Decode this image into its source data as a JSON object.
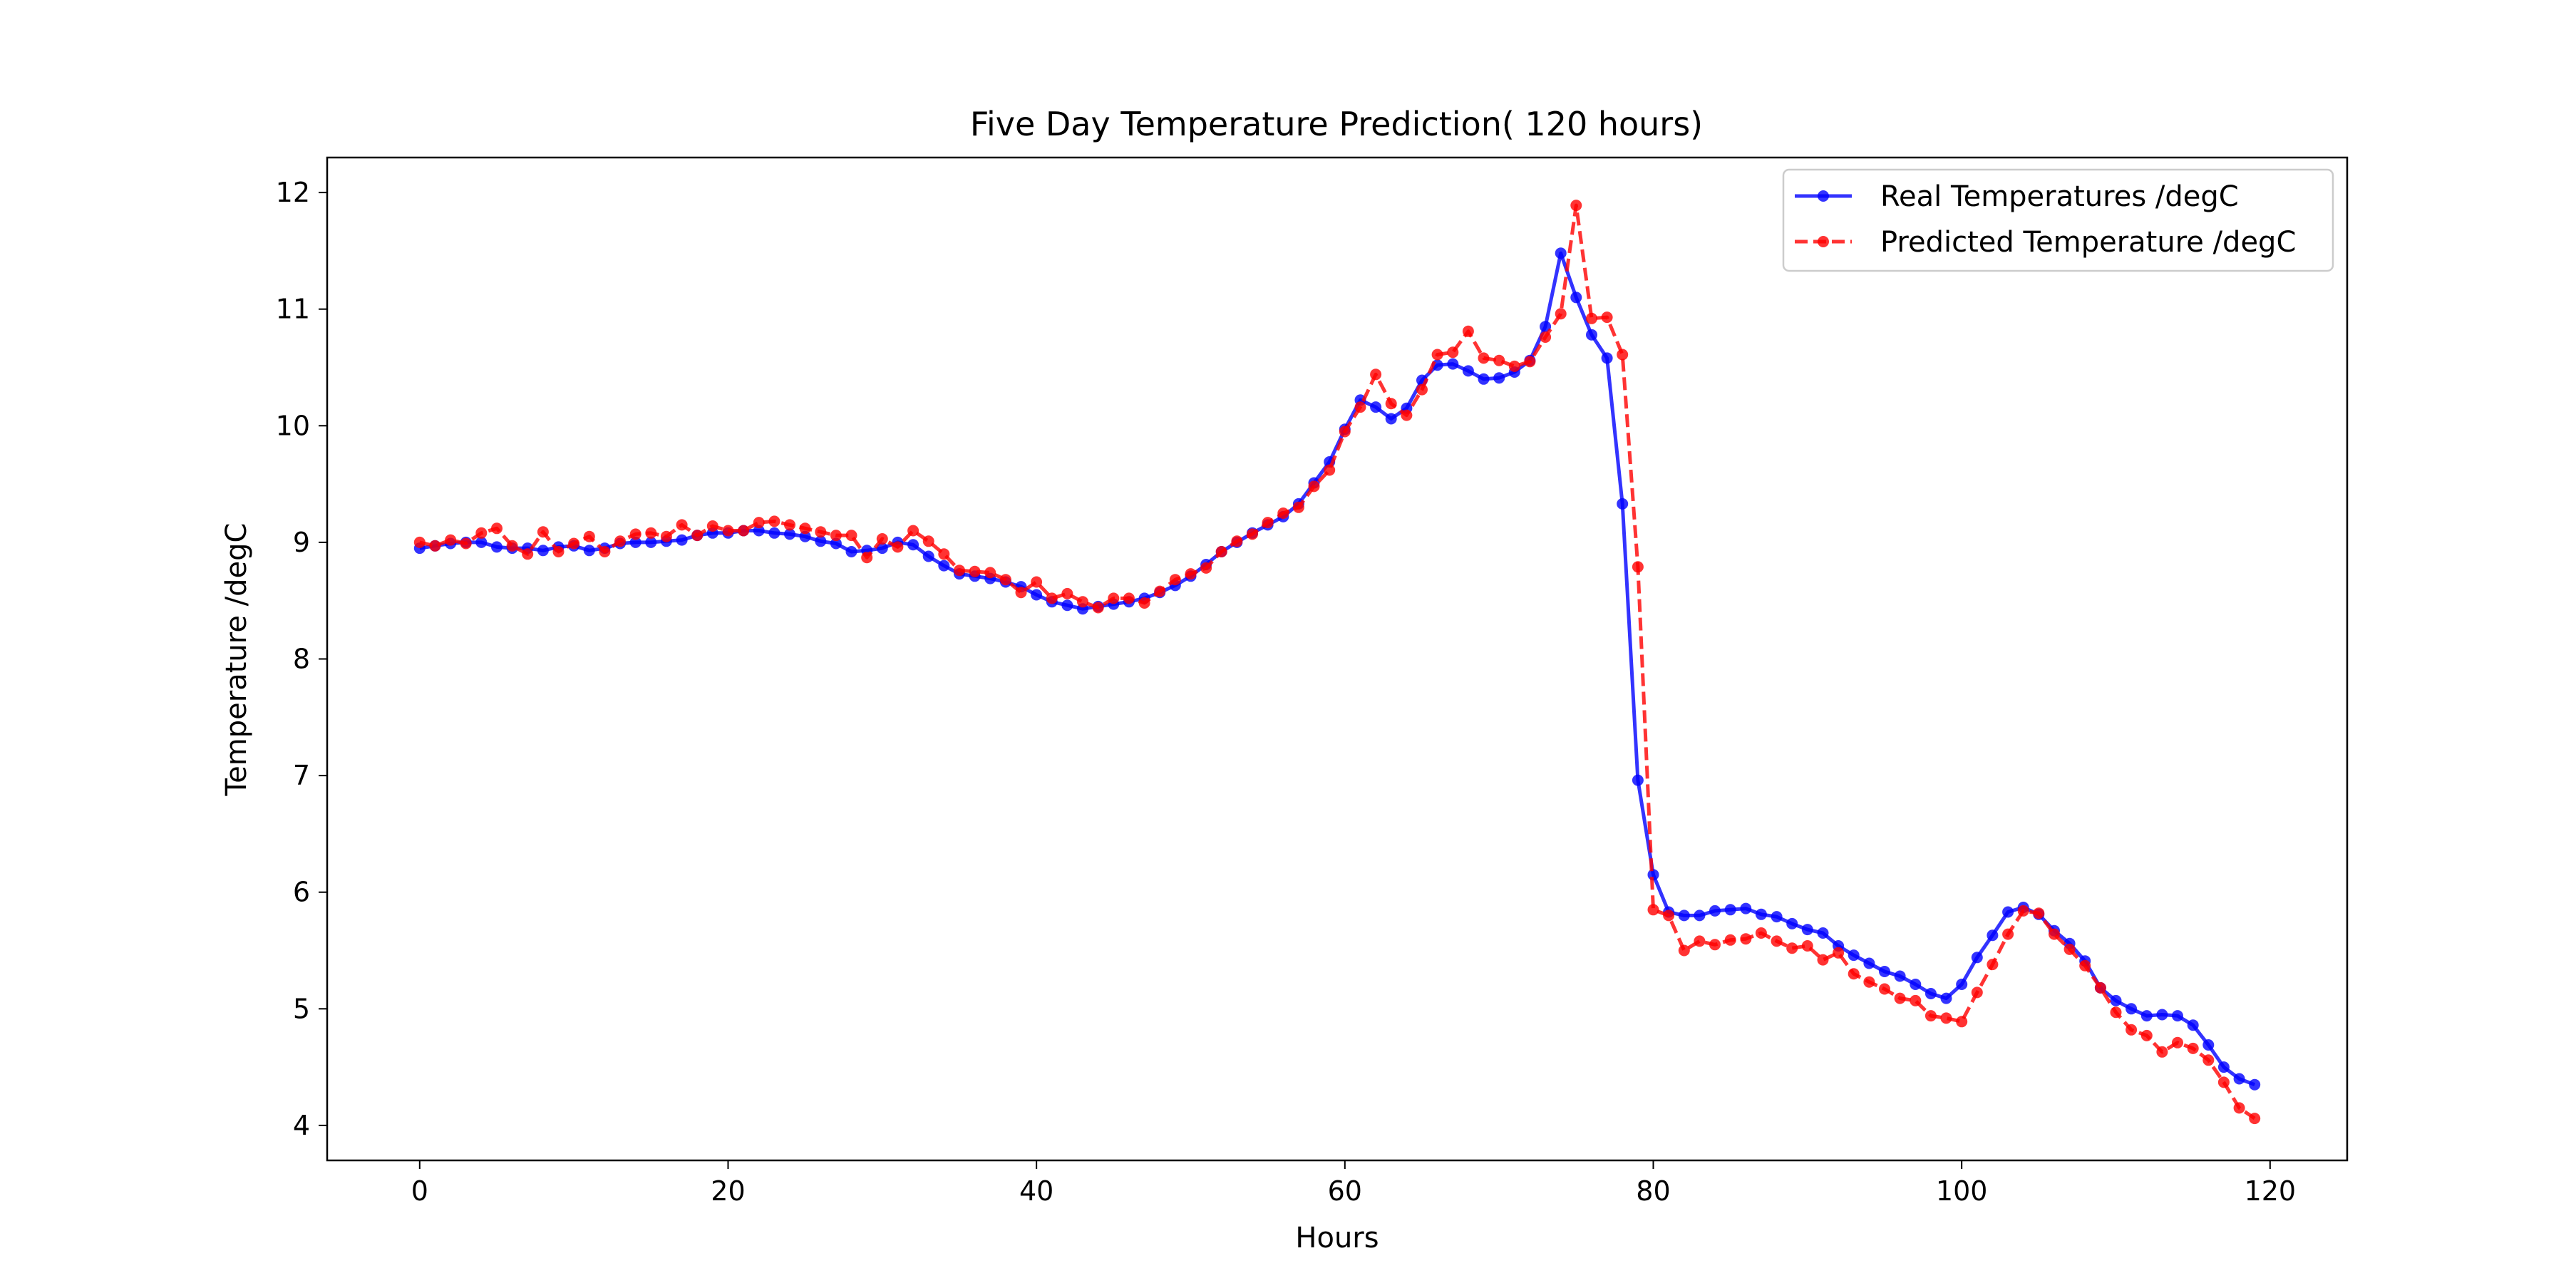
{
  "chart_data": {
    "type": "line",
    "title": "Five  Day Temperature Prediction( 120 hours)",
    "xlabel": "Hours",
    "ylabel": "Temperature /degC",
    "xlim": [
      -6,
      125
    ],
    "ylim": [
      3.7,
      12.3
    ],
    "xticks": [
      0,
      20,
      40,
      60,
      80,
      100,
      120
    ],
    "yticks": [
      4,
      5,
      6,
      7,
      8,
      9,
      10,
      11,
      12
    ],
    "grid": false,
    "legend_position": "top-right",
    "x": [
      0,
      1,
      2,
      3,
      4,
      5,
      6,
      7,
      8,
      9,
      10,
      11,
      12,
      13,
      14,
      15,
      16,
      17,
      18,
      19,
      20,
      21,
      22,
      23,
      24,
      25,
      26,
      27,
      28,
      29,
      30,
      31,
      32,
      33,
      34,
      35,
      36,
      37,
      38,
      39,
      40,
      41,
      42,
      43,
      44,
      45,
      46,
      47,
      48,
      49,
      50,
      51,
      52,
      53,
      54,
      55,
      56,
      57,
      58,
      59,
      60,
      61,
      62,
      63,
      64,
      65,
      66,
      67,
      68,
      69,
      70,
      71,
      72,
      73,
      74,
      75,
      76,
      77,
      78,
      79,
      80,
      81,
      82,
      83,
      84,
      85,
      86,
      87,
      88,
      89,
      90,
      91,
      92,
      93,
      94,
      95,
      96,
      97,
      98,
      99,
      100,
      101,
      102,
      103,
      104,
      105,
      106,
      107,
      108,
      109,
      110,
      111,
      112,
      113,
      114,
      115,
      116,
      117,
      118,
      119
    ],
    "series": [
      {
        "name": "Real Temperatures /degC",
        "color": "#0000ff",
        "style": "solid",
        "values": [
          8.95,
          8.97,
          8.99,
          9.0,
          9.0,
          8.96,
          8.95,
          8.95,
          8.93,
          8.96,
          8.97,
          8.93,
          8.95,
          8.99,
          9.0,
          9.0,
          9.01,
          9.02,
          9.06,
          9.08,
          9.08,
          9.1,
          9.1,
          9.08,
          9.07,
          9.05,
          9.01,
          8.99,
          8.92,
          8.93,
          8.95,
          9.0,
          8.98,
          8.88,
          8.8,
          8.73,
          8.71,
          8.69,
          8.66,
          8.62,
          8.55,
          8.49,
          8.46,
          8.43,
          8.45,
          8.47,
          8.49,
          8.52,
          8.57,
          8.63,
          8.71,
          8.81,
          8.92,
          9.0,
          9.08,
          9.15,
          9.22,
          9.33,
          9.51,
          9.69,
          9.97,
          10.22,
          10.16,
          10.06,
          10.15,
          10.39,
          10.52,
          10.53,
          10.47,
          10.4,
          10.41,
          10.46,
          10.56,
          10.85,
          11.48,
          11.1,
          10.78,
          10.58,
          9.33,
          6.96,
          6.15,
          5.83,
          5.8,
          5.8,
          5.84,
          5.85,
          5.86,
          5.81,
          5.79,
          5.73,
          5.68,
          5.65,
          5.54,
          5.46,
          5.39,
          5.32,
          5.28,
          5.21,
          5.13,
          5.09,
          5.21,
          5.44,
          5.63,
          5.83,
          5.87,
          5.81,
          5.67,
          5.56,
          5.41,
          5.18,
          5.07,
          5.0,
          4.94,
          4.95,
          4.94,
          4.86,
          4.69,
          4.5,
          4.4,
          4.35
        ]
      },
      {
        "name": "Predicted Temperature /degC",
        "color": "#ff0000",
        "style": "dashed",
        "values": [
          9.0,
          8.97,
          9.02,
          8.99,
          9.08,
          9.12,
          8.97,
          8.9,
          9.09,
          8.92,
          8.99,
          9.05,
          8.92,
          9.01,
          9.07,
          9.08,
          9.05,
          9.15,
          9.06,
          9.14,
          9.1,
          9.1,
          9.17,
          9.18,
          9.15,
          9.12,
          9.09,
          9.06,
          9.06,
          8.87,
          9.03,
          8.96,
          9.1,
          9.01,
          8.9,
          8.76,
          8.75,
          8.74,
          8.68,
          8.57,
          8.66,
          8.52,
          8.56,
          8.49,
          8.44,
          8.52,
          8.52,
          8.48,
          8.58,
          8.68,
          8.73,
          8.78,
          8.92,
          9.01,
          9.07,
          9.17,
          9.25,
          9.3,
          9.48,
          9.62,
          9.95,
          10.16,
          10.44,
          10.19,
          10.09,
          10.31,
          10.61,
          10.63,
          10.81,
          10.58,
          10.56,
          10.51,
          10.55,
          10.76,
          10.96,
          11.89,
          10.92,
          10.93,
          10.61,
          8.79,
          5.85,
          5.8,
          5.5,
          5.58,
          5.55,
          5.59,
          5.6,
          5.65,
          5.58,
          5.52,
          5.54,
          5.42,
          5.48,
          5.3,
          5.23,
          5.17,
          5.09,
          5.07,
          4.94,
          4.92,
          4.89,
          5.14,
          5.38,
          5.64,
          5.84,
          5.82,
          5.64,
          5.51,
          5.37,
          5.18,
          4.97,
          4.82,
          4.77,
          4.63,
          4.71,
          4.66,
          4.56,
          4.37,
          4.15,
          4.06
        ]
      }
    ]
  }
}
